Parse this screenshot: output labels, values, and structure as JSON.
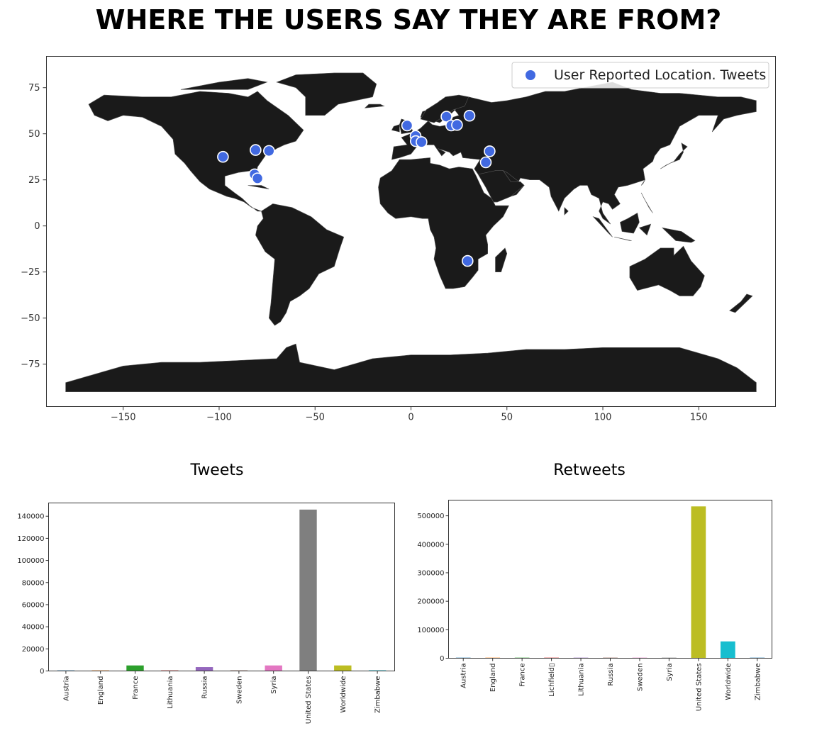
{
  "page": {
    "title": "WHERE THE USERS SAY THEY ARE FROM?"
  },
  "chart_data": [
    {
      "type": "scatter",
      "chart_id": "map",
      "title": "",
      "xlabel": "",
      "ylabel": "",
      "xlim": [
        -190,
        190
      ],
      "ylim": [
        -98,
        92
      ],
      "xticks": [
        -150,
        -100,
        -50,
        0,
        50,
        100,
        150
      ],
      "xtick_labels": [
        "−150",
        "−100",
        "−50",
        "0",
        "50",
        "100",
        "150"
      ],
      "yticks": [
        75,
        50,
        25,
        0,
        -25,
        -50,
        -75
      ],
      "ytick_labels": [
        "75",
        "50",
        "25",
        "0",
        "−25",
        "−50",
        "−75"
      ],
      "grid": false,
      "legend": {
        "position": "top-right",
        "entries": [
          "User Reported Location. Tweets"
        ]
      },
      "background_map": "world countries, dark fill (#1a1a1a) with grey borders",
      "point_color": "#4169e1",
      "series": [
        {
          "name": "User Reported Location. Tweets",
          "points": [
            {
              "x": -98,
              "y": 37.5
            },
            {
              "x": -81,
              "y": 41.2
            },
            {
              "x": -74,
              "y": 40.7
            },
            {
              "x": -81.5,
              "y": 28
            },
            {
              "x": -80,
              "y": 25.8
            },
            {
              "x": -2,
              "y": 54.5
            },
            {
              "x": 2.4,
              "y": 48.8
            },
            {
              "x": 2.5,
              "y": 46
            },
            {
              "x": 5.5,
              "y": 45.5
            },
            {
              "x": 18.5,
              "y": 59.3
            },
            {
              "x": 21,
              "y": 54.5
            },
            {
              "x": 24,
              "y": 54.8
            },
            {
              "x": 30.5,
              "y": 59.8
            },
            {
              "x": 41,
              "y": 40.5
            },
            {
              "x": 39,
              "y": 34.5
            },
            {
              "x": 29.5,
              "y": -19
            }
          ]
        }
      ]
    },
    {
      "type": "bar",
      "chart_id": "tweets",
      "title": "Tweets",
      "xlabel": "",
      "ylabel": "",
      "ylim": [
        0,
        152000
      ],
      "yticks": [
        0,
        20000,
        40000,
        60000,
        80000,
        100000,
        120000,
        140000
      ],
      "ytick_labels": [
        "0",
        "20000",
        "40000",
        "60000",
        "80000",
        "100000",
        "120000",
        "140000"
      ],
      "grid": false,
      "categories": [
        "Austria",
        "England",
        "France",
        "Lithuania",
        "Russia",
        "Sweden",
        "Syria",
        "United States",
        "Worldwide",
        "Zimbabwe"
      ],
      "values": [
        150,
        500,
        5000,
        100,
        3500,
        200,
        5000,
        146000,
        5000,
        600
      ],
      "colors": [
        "#1f77b4",
        "#ff7f0e",
        "#2ca02c",
        "#d62728",
        "#9467bd",
        "#8c564b",
        "#e377c2",
        "#7f7f7f",
        "#bcbd22",
        "#17becf"
      ]
    },
    {
      "type": "bar",
      "chart_id": "retweets",
      "title": "Retweets",
      "xlabel": "",
      "ylabel": "",
      "ylim": [
        0,
        555000
      ],
      "yticks": [
        0,
        100000,
        200000,
        300000,
        400000,
        500000
      ],
      "ytick_labels": [
        "0",
        "100000",
        "200000",
        "300000",
        "400000",
        "500000"
      ],
      "grid": false,
      "categories": [
        "Austria",
        "England",
        "France",
        "Lichfield▯",
        "Lithuania",
        "Russia",
        "Sweden",
        "Syria",
        "United States",
        "Worldwide",
        "Zimbabwe"
      ],
      "values": [
        300,
        600,
        800,
        200,
        300,
        500,
        300,
        2000,
        533000,
        59000,
        400
      ],
      "colors": [
        "#1f77b4",
        "#ff7f0e",
        "#2ca02c",
        "#d62728",
        "#9467bd",
        "#8c564b",
        "#e377c2",
        "#7f7f7f",
        "#bcbd22",
        "#17becf",
        "#1f77b4"
      ]
    }
  ]
}
